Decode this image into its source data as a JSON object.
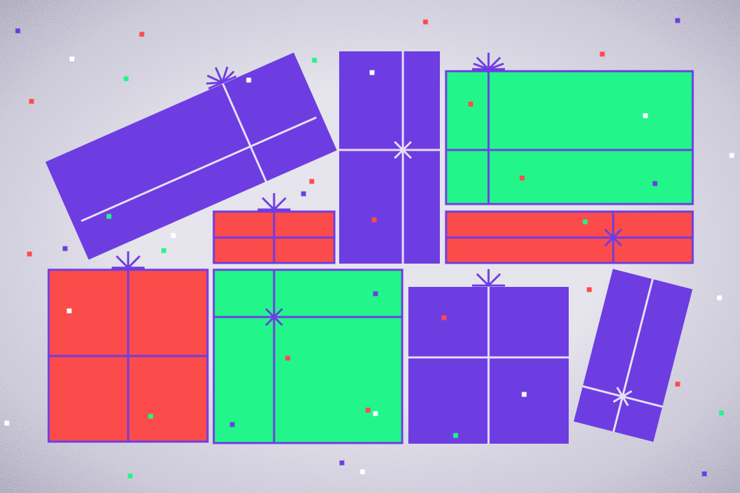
{
  "colors": {
    "background": "#e4e2ea",
    "background_edge": "#a9a6bc",
    "purple": "#6d3de2",
    "green": "#22f68a",
    "red": "#fc4b4b",
    "ribbon_light": "#e8e0f6"
  },
  "gifts": [
    {
      "id": "tilted-long-purple",
      "color": "purple",
      "ribbon": "light",
      "decoration": "bow"
    },
    {
      "id": "tall-purple",
      "color": "purple",
      "ribbon": "light",
      "decoration": "star"
    },
    {
      "id": "wide-green-top",
      "color": "green",
      "ribbon": "purple",
      "decoration": "bow"
    },
    {
      "id": "small-red",
      "color": "red",
      "ribbon": "purple",
      "decoration": "bow"
    },
    {
      "id": "wide-red",
      "color": "red",
      "ribbon": "purple",
      "decoration": "star"
    },
    {
      "id": "big-red",
      "color": "red",
      "ribbon": "purple",
      "decoration": "bow"
    },
    {
      "id": "big-green",
      "color": "green",
      "ribbon": "purple",
      "decoration": "star"
    },
    {
      "id": "purple-bottom",
      "color": "purple",
      "ribbon": "light",
      "decoration": "bow"
    },
    {
      "id": "tilted-small-purple",
      "color": "purple",
      "ribbon": "light",
      "decoration": "star"
    }
  ]
}
